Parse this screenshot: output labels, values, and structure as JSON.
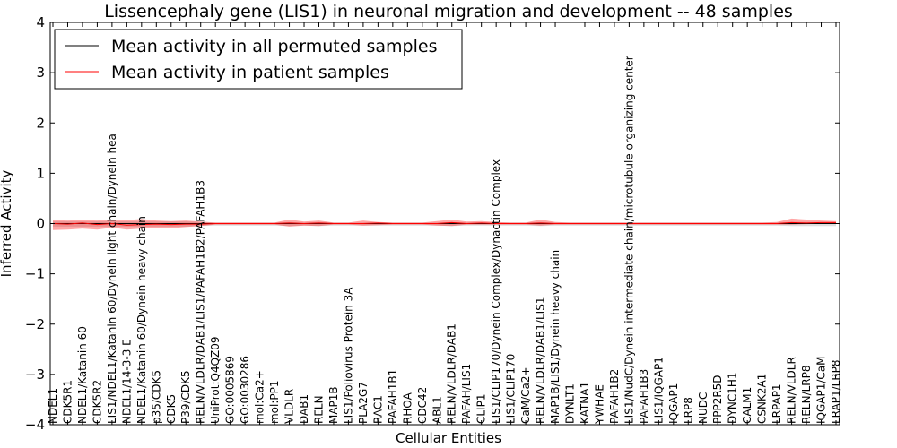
{
  "chart_data": {
    "type": "line",
    "title": "Lissencephaly gene (LIS1) in neuronal migration and development -- 48 samples",
    "xlabel": "Cellular Entities",
    "ylabel": "Inferred Activity",
    "ylim": [
      -4,
      4
    ],
    "yticks": [
      -4,
      -3,
      -2,
      -1,
      0,
      1,
      2,
      3,
      4
    ],
    "ytick_labels": [
      "−4",
      "−3",
      "−2",
      "−1",
      "0",
      "1",
      "2",
      "3",
      "4"
    ],
    "grid": false,
    "legend_position": "top-left",
    "categories": [
      "NDEL1",
      "CDK5R1",
      "NDEL1/Katanin 60",
      "CDK5R2",
      "LIS1/NDEL1/Katanin 60/Dynein light chain/Dynein hea",
      "NDEL1/14-3-3 E",
      "NDEL1/Katanin 60/Dynein heavy chain",
      "p35/CDK5",
      "CDK5",
      "P39/CDK5",
      "RELN/VLDLR/DAB1/LIS1/PAFAH1B2/PAFAH1B3",
      "UniProt:Q4QZ09",
      "GO:0005869",
      "GO:0030286",
      "mol:Ca2+",
      "mol:PP1",
      "VLDLR",
      "DAB1",
      "RELN",
      "MAP1B",
      "LIS1/Poliovirus Protein 3A",
      "PLA2G7",
      "RAC1",
      "PAFAH1B1",
      "RHOA",
      "CDC42",
      "ABL1",
      "RELN/VLDLR/DAB1",
      "PAFAH/LIS1",
      "CLIP1",
      "LIS1/CLIP170/Dynein Complex/Dynactin Complex",
      "LIS1/CLIP170",
      "CaM/Ca2+",
      "RELN/VLDLR/DAB1/LIS1",
      "MAP1B/LIS1/Dynein heavy chain",
      "DYNLT1",
      "KATNA1",
      "YWHAE",
      "PAFAH1B2",
      "LIS1/NudC/Dynein intermediate chain/microtubule organizing center",
      "PAFAH1B3",
      "LIS1/IQGAP1",
      "IQGAP1",
      "LRP8",
      "NUDC",
      "PPP2R5D",
      "DYNC1H1",
      "CALM1",
      "CSNK2A1",
      "LRPAP1",
      "RELN/VLDLR",
      "RELN/LRP8",
      "IQGAP1/CaM",
      "LRAP1/LRP8"
    ],
    "series": [
      {
        "name": "Mean activity in all permuted samples",
        "color": "#000000",
        "style": "solid",
        "values": [
          0.0,
          0.0,
          0.0,
          0.0,
          0.0,
          0.0,
          0.0,
          0.0,
          0.0,
          0.0,
          0.0,
          0.0,
          0.0,
          0.0,
          0.0,
          0.0,
          0.0,
          0.0,
          0.0,
          0.0,
          0.0,
          0.0,
          0.0,
          0.0,
          0.0,
          0.0,
          0.0,
          0.0,
          0.0,
          0.0,
          0.0,
          0.0,
          0.0,
          0.0,
          0.0,
          0.0,
          0.0,
          0.0,
          0.0,
          0.0,
          0.0,
          0.0,
          0.0,
          0.0,
          0.0,
          0.0,
          0.0,
          0.0,
          0.0,
          0.0,
          0.0,
          0.0,
          0.0,
          0.0
        ]
      },
      {
        "name": "Mean activity in patient samples",
        "color": "#ff0000",
        "style": "solid",
        "values": [
          0.0,
          -0.01,
          0.01,
          -0.02,
          0.0,
          -0.03,
          -0.02,
          -0.01,
          -0.02,
          -0.01,
          -0.01,
          0.0,
          0.0,
          0.0,
          0.0,
          0.0,
          0.01,
          0.0,
          0.01,
          0.0,
          0.0,
          0.0,
          0.01,
          0.0,
          0.0,
          0.0,
          0.0,
          0.02,
          0.0,
          0.01,
          0.0,
          0.0,
          0.0,
          0.01,
          0.0,
          0.0,
          0.0,
          0.0,
          0.0,
          0.0,
          0.0,
          0.0,
          0.0,
          0.0,
          0.0,
          0.0,
          0.0,
          0.0,
          0.0,
          0.0,
          0.02,
          0.01,
          0.02,
          0.02
        ]
      }
    ],
    "patient_band": {
      "color": "#ff0000",
      "lower": [
        -0.13,
        -0.12,
        -0.1,
        -0.12,
        -0.08,
        -0.12,
        -0.1,
        -0.08,
        -0.09,
        -0.07,
        -0.05,
        -0.02,
        -0.02,
        -0.02,
        -0.02,
        -0.02,
        -0.06,
        -0.04,
        -0.05,
        -0.02,
        -0.02,
        -0.04,
        -0.03,
        -0.02,
        -0.02,
        -0.02,
        -0.04,
        -0.05,
        -0.02,
        -0.02,
        -0.02,
        -0.02,
        -0.02,
        -0.04,
        -0.02,
        -0.02,
        -0.02,
        -0.02,
        -0.02,
        -0.02,
        -0.02,
        -0.02,
        -0.02,
        -0.02,
        -0.02,
        -0.02,
        -0.02,
        -0.02,
        -0.02,
        -0.02,
        -0.02,
        -0.01,
        0.0,
        0.01
      ],
      "upper": [
        0.07,
        0.06,
        0.07,
        0.06,
        0.08,
        0.07,
        0.09,
        0.06,
        0.05,
        0.06,
        0.04,
        0.02,
        0.02,
        0.02,
        0.02,
        0.02,
        0.08,
        0.04,
        0.06,
        0.02,
        0.02,
        0.06,
        0.03,
        0.02,
        0.02,
        0.02,
        0.05,
        0.08,
        0.04,
        0.05,
        0.03,
        0.02,
        0.02,
        0.08,
        0.03,
        0.02,
        0.02,
        0.02,
        0.02,
        0.02,
        0.02,
        0.02,
        0.02,
        0.02,
        0.02,
        0.02,
        0.02,
        0.02,
        0.02,
        0.03,
        0.1,
        0.08,
        0.06,
        0.05
      ]
    },
    "permuted_band": {
      "color": "#c8c8c8",
      "lower": [
        -0.06,
        -0.06,
        -0.06,
        -0.06,
        -0.06,
        -0.06,
        -0.06,
        -0.06,
        -0.06,
        -0.06,
        -0.05,
        -0.04,
        -0.04,
        -0.04,
        -0.04,
        -0.04,
        -0.05,
        -0.04,
        -0.05,
        -0.04,
        -0.04,
        -0.04,
        -0.04,
        -0.04,
        -0.04,
        -0.04,
        -0.04,
        -0.05,
        -0.04,
        -0.04,
        -0.04,
        -0.04,
        -0.04,
        -0.05,
        -0.04,
        -0.04,
        -0.04,
        -0.04,
        -0.04,
        -0.04,
        -0.04,
        -0.04,
        -0.04,
        -0.04,
        -0.04,
        -0.04,
        -0.04,
        -0.04,
        -0.04,
        -0.04,
        -0.05,
        -0.05,
        -0.05,
        -0.05
      ],
      "upper": [
        0.04,
        0.04,
        0.04,
        0.04,
        0.04,
        0.04,
        0.04,
        0.04,
        0.04,
        0.04,
        0.03,
        0.02,
        0.02,
        0.02,
        0.02,
        0.02,
        0.03,
        0.02,
        0.03,
        0.02,
        0.02,
        0.02,
        0.02,
        0.02,
        0.02,
        0.02,
        0.02,
        0.03,
        0.02,
        0.02,
        0.02,
        0.02,
        0.02,
        0.03,
        0.02,
        0.02,
        0.02,
        0.02,
        0.02,
        0.02,
        0.02,
        0.02,
        0.02,
        0.02,
        0.02,
        0.02,
        0.02,
        0.02,
        0.02,
        0.02,
        0.03,
        0.03,
        0.03,
        0.03
      ]
    }
  }
}
